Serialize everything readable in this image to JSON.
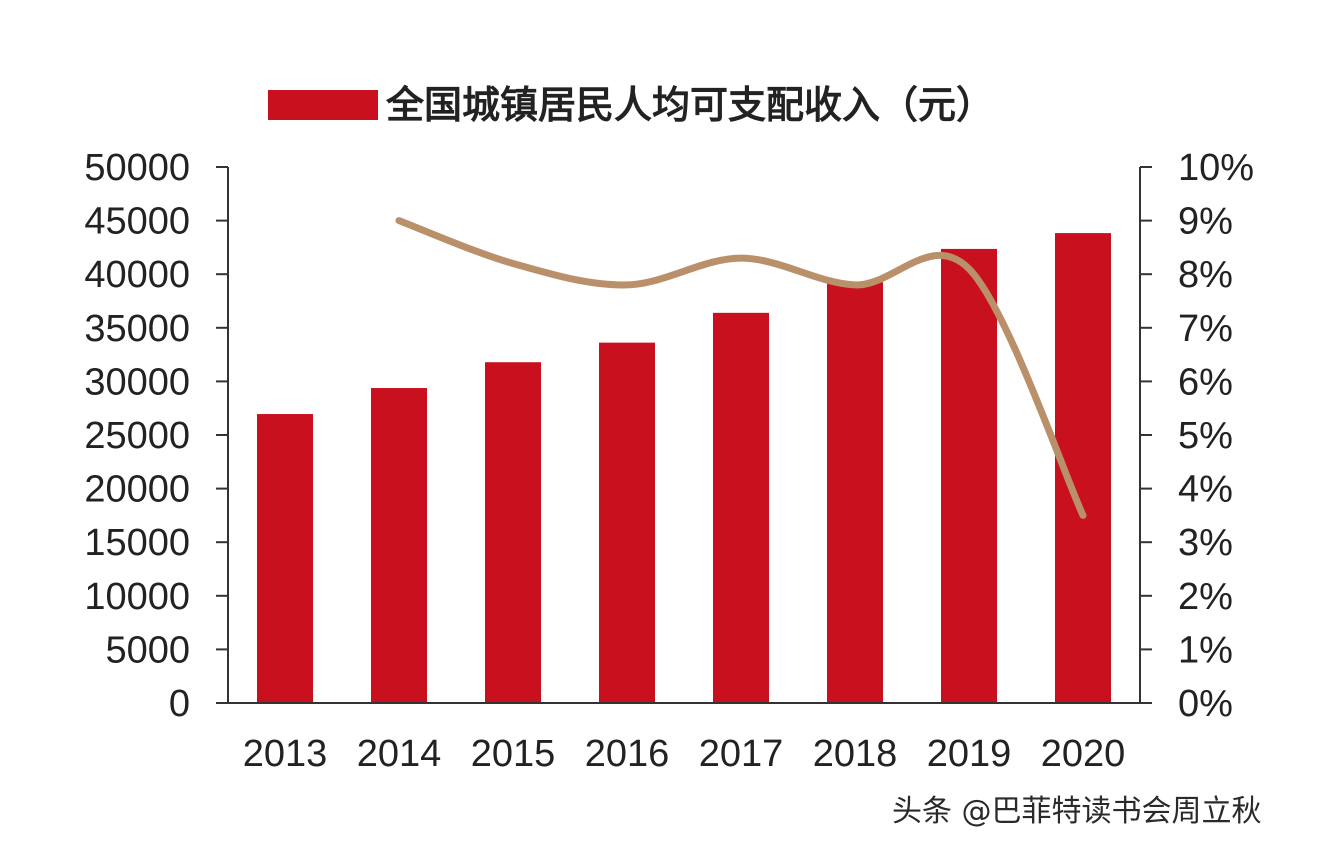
{
  "chart_data": {
    "type": "bar",
    "categories": [
      "2013",
      "2014",
      "2015",
      "2016",
      "2017",
      "2018",
      "2019",
      "2020"
    ],
    "series": [
      {
        "name": "全国城镇居民人均可支配收入（元）",
        "type": "bar",
        "axis": "left",
        "color": "#c8101e",
        "values": [
          26955,
          29381,
          31790,
          33616,
          36396,
          39251,
          42359,
          43834
        ]
      },
      {
        "type": "line",
        "axis": "right",
        "color": "#b9906a",
        "values": [
          null,
          9.0,
          8.2,
          7.8,
          8.3,
          7.8,
          8.1,
          3.5
        ]
      }
    ],
    "y_left": {
      "min": 0,
      "max": 50000,
      "step": 5000,
      "tick_labels": [
        "0",
        "5000",
        "10000",
        "15000",
        "20000",
        "25000",
        "30000",
        "35000",
        "40000",
        "45000",
        "50000"
      ]
    },
    "y_right": {
      "min": 0,
      "max": 10,
      "step": 1,
      "tick_labels": [
        "0%",
        "1%",
        "2%",
        "3%",
        "4%",
        "5%",
        "6%",
        "7%",
        "8%",
        "9%",
        "10%"
      ]
    },
    "legend": {
      "position": "top",
      "label": "全国城镇居民人均可支配收入（元）"
    },
    "grid": false
  },
  "watermark": "头条 @巴菲特读书会周立秋"
}
